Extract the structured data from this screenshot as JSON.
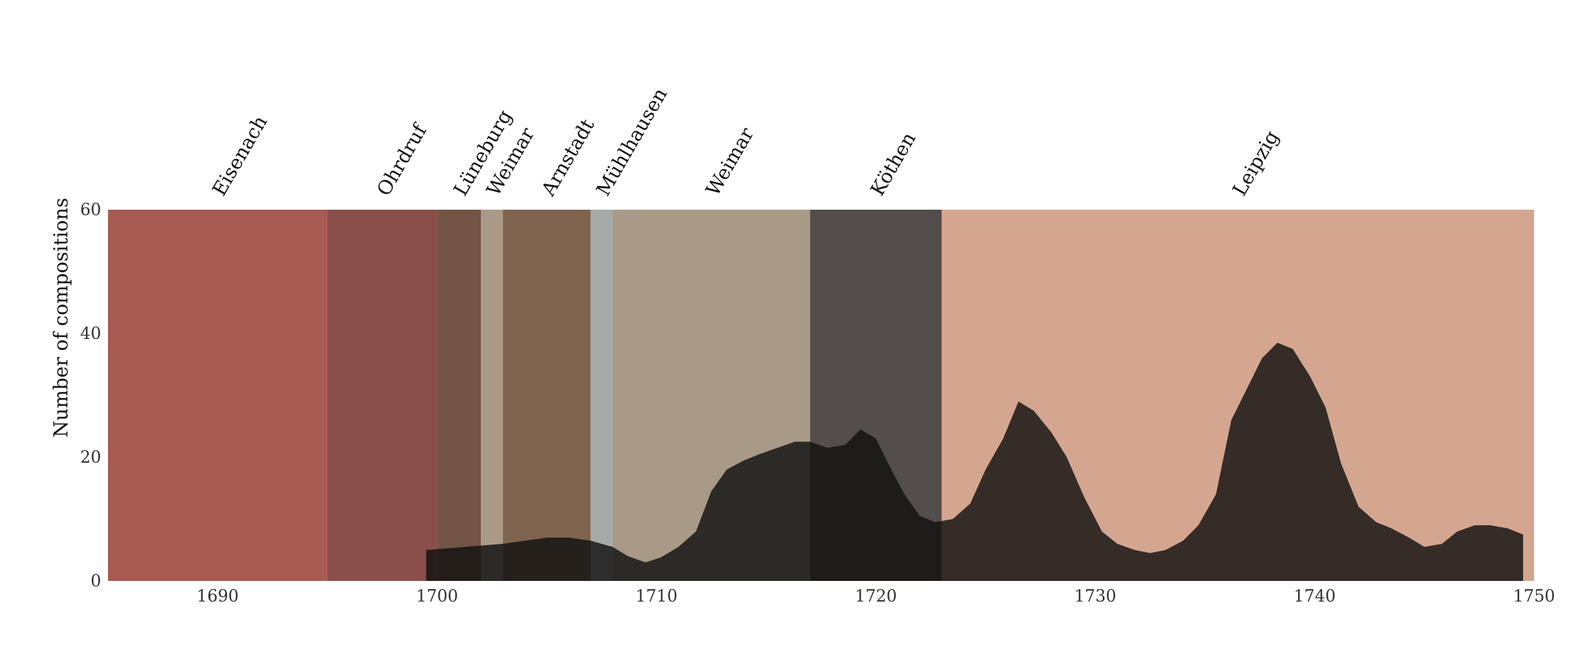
{
  "chart_data": {
    "type": "area",
    "title": "",
    "xlabel": "",
    "ylabel": "Number of compositions",
    "xlim": [
      1685,
      1750
    ],
    "ylim": [
      0,
      60
    ],
    "x_ticks": [
      1690,
      1700,
      1710,
      1720,
      1730,
      1740,
      1750
    ],
    "y_ticks": [
      0,
      20,
      40,
      60
    ],
    "grid": false,
    "periods": [
      {
        "label": "Eisenach",
        "start": 1685,
        "end": 1695,
        "color": "#a85b53"
      },
      {
        "label": "Ohrdruf",
        "start": 1695,
        "end": 1700,
        "color": "#8a4f4a"
      },
      {
        "label": "Lüneburg",
        "start": 1700,
        "end": 1702,
        "color": "#735446"
      },
      {
        "label": "Weimar",
        "start": 1702,
        "end": 1703,
        "color": "#a89a86"
      },
      {
        "label": "Arnstadt",
        "start": 1703,
        "end": 1707,
        "color": "#7e634e"
      },
      {
        "label": "Mühlhausen",
        "start": 1707,
        "end": 1708,
        "color": "#a4aba8"
      },
      {
        "label": "Weimar",
        "start": 1708,
        "end": 1717,
        "color": "#a89a86"
      },
      {
        "label": "Köthen",
        "start": 1717,
        "end": 1723,
        "color": "#534e4b"
      },
      {
        "label": "Leipzig",
        "start": 1723,
        "end": 1750,
        "color": "#d5a68f"
      }
    ],
    "series": [
      {
        "color": "#111111",
        "x": [
          1699.5,
          1703,
          1704,
          1705,
          1706,
          1707,
          1708,
          1708.7,
          1709.5,
          1710.2,
          1711,
          1711.8,
          1712.5,
          1713.2,
          1714,
          1714.7,
          1715.5,
          1716.3,
          1717,
          1717.8,
          1718.6,
          1719.3,
          1720,
          1720.7,
          1721.3,
          1722,
          1722.7,
          1723.5,
          1724.3,
          1725,
          1725.8,
          1726.5,
          1727.2,
          1728,
          1728.7,
          1729.5,
          1730.3,
          1731,
          1731.8,
          1732.5,
          1733.2,
          1734,
          1734.7,
          1735.5,
          1736.2,
          1736.9,
          1737.6,
          1738.3,
          1739,
          1739.8,
          1740.5,
          1741.2,
          1742,
          1742.8,
          1743.5,
          1744.3,
          1745,
          1745.8,
          1746.5,
          1747.3,
          1748,
          1748.8,
          1749.5
        ],
        "y": [
          5,
          6,
          6.5,
          7,
          7,
          6.5,
          5.5,
          4,
          3,
          3.8,
          5.5,
          8,
          14.5,
          18,
          19.5,
          20.5,
          21.5,
          22.5,
          22.5,
          21.5,
          22,
          24.5,
          23,
          18,
          14,
          10.5,
          9.5,
          10,
          12.5,
          18,
          23,
          29,
          27.5,
          24,
          20,
          13.5,
          8,
          6,
          5,
          4.5,
          5,
          6.5,
          9,
          14,
          26,
          31,
          36,
          38.5,
          37.5,
          33,
          28,
          19,
          12,
          9.5,
          8.5,
          7,
          5.5,
          6,
          8,
          9,
          9,
          8.5,
          7.5
        ]
      }
    ]
  }
}
